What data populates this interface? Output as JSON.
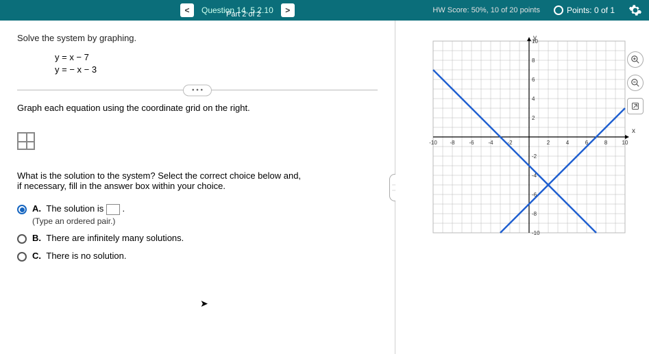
{
  "header": {
    "question_label": "Question 14, 5.2.10",
    "part_label": "Part 2 of 2",
    "hw_score": "HW Score: 50%, 10 of 20 points",
    "points": "Points: 0 of 1",
    "prev": "<",
    "next": ">"
  },
  "problem": {
    "prompt": "Solve the system by graphing.",
    "eq1": "y =   x − 7",
    "eq2": "y = − x − 3",
    "instruction": "Graph each equation using the coordinate grid on the right.",
    "question2a": "What is the solution to the system? Select the correct choice below and,",
    "question2b": "if necessary, fill in the answer box within your choice."
  },
  "choices": {
    "a_label": "A.",
    "a_text_pre": "The solution is ",
    "a_text_post": ".",
    "a_sub": "(Type an ordered pair.)",
    "b_label": "B.",
    "b_text": "There are infinitely many solutions.",
    "c_label": "C.",
    "c_text": "There is no solution.",
    "selected": "A"
  },
  "graph": {
    "xmin": -10,
    "xmax": 10,
    "ymin": -10,
    "ymax": 10,
    "tick_step": 2,
    "x_ticks": [
      -10,
      -8,
      -6,
      -4,
      -2,
      2,
      4,
      6,
      8,
      10
    ],
    "y_ticks": [
      -10,
      -8,
      -6,
      -4,
      -2,
      2,
      4,
      6,
      8,
      10
    ],
    "grid_color": "#b8b8b8",
    "axis_color": "#000000",
    "line_color": "#1f5fd0",
    "line_width": 2.5,
    "background": "#ffffff",
    "x_label": "x",
    "y_label": "y",
    "lines": [
      {
        "x1": -3,
        "y1": -10,
        "x2": 10,
        "y2": 3
      },
      {
        "x1": -10,
        "y1": 7,
        "x2": 7,
        "y2": -10
      }
    ]
  },
  "tools": {
    "zoom_in": "+",
    "zoom_out": "−",
    "popout": "↗"
  }
}
